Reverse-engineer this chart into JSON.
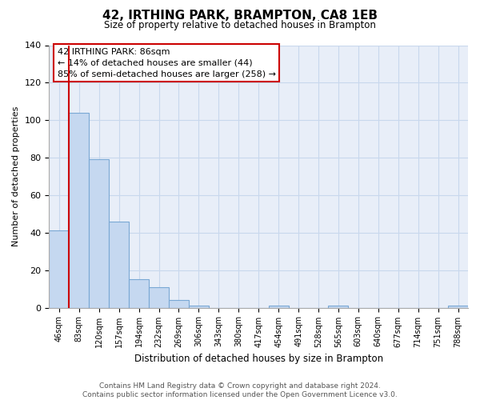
{
  "title": "42, IRTHING PARK, BRAMPTON, CA8 1EB",
  "subtitle": "Size of property relative to detached houses in Brampton",
  "xlabel": "Distribution of detached houses by size in Brampton",
  "ylabel": "Number of detached properties",
  "bar_labels": [
    "46sqm",
    "83sqm",
    "120sqm",
    "157sqm",
    "194sqm",
    "232sqm",
    "269sqm",
    "306sqm",
    "343sqm",
    "380sqm",
    "417sqm",
    "454sqm",
    "491sqm",
    "528sqm",
    "565sqm",
    "603sqm",
    "640sqm",
    "677sqm",
    "714sqm",
    "751sqm",
    "788sqm"
  ],
  "bar_values": [
    41,
    104,
    79,
    46,
    15,
    11,
    4,
    1,
    0,
    0,
    0,
    1,
    0,
    0,
    1,
    0,
    0,
    0,
    0,
    0,
    1
  ],
  "bar_color": "#c5d8f0",
  "bar_edge_color": "#7aa8d4",
  "subject_line_color": "#cc0000",
  "ylim": [
    0,
    140
  ],
  "yticks": [
    0,
    20,
    40,
    60,
    80,
    100,
    120,
    140
  ],
  "annotation_title": "42 IRTHING PARK: 86sqm",
  "annotation_line1": "← 14% of detached houses are smaller (44)",
  "annotation_line2": "85% of semi-detached houses are larger (258) →",
  "footer_line1": "Contains HM Land Registry data © Crown copyright and database right 2024.",
  "footer_line2": "Contains public sector information licensed under the Open Government Licence v3.0.",
  "grid_color": "#c8d8ed",
  "background_color": "#e8eef8"
}
